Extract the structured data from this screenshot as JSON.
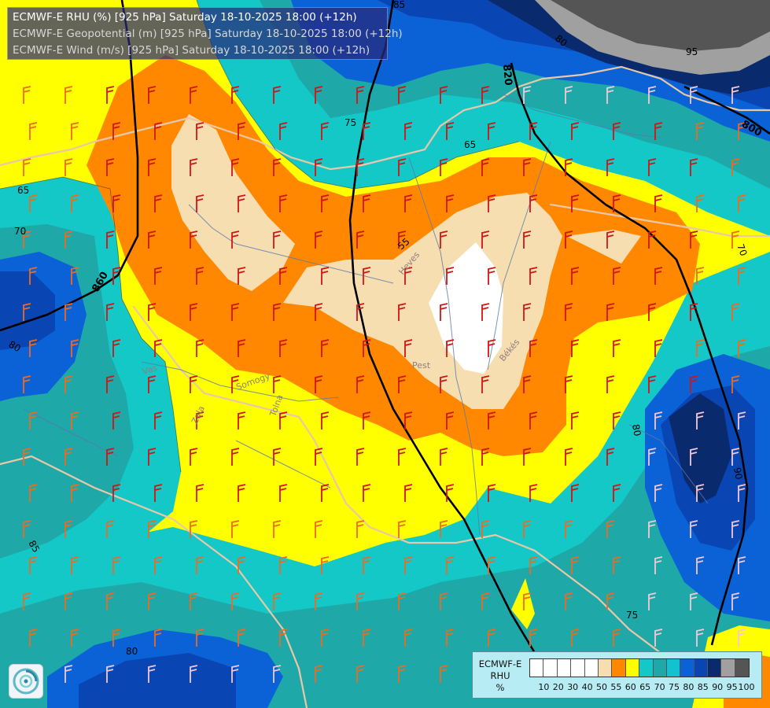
{
  "title": {
    "line1": "ECMWF-E RHU (%) [925 hPa] Saturday 18-10-2025 18:00 (+12h)",
    "line2": "ECMWF-E Geopotential (m) [925 hPa] Saturday 18-10-2025 18:00 (+12h)",
    "line3": "ECMWF-E Wind (m/s) [925 hPa] Saturday 18-10-2025 18:00 (+12h)"
  },
  "legend": {
    "title_line1": "ECMWF-E",
    "title_line2": "RHU",
    "title_line3": "%",
    "ticks": [
      "10",
      "20",
      "30",
      "40",
      "50",
      "55",
      "60",
      "65",
      "70",
      "75",
      "80",
      "85",
      "90",
      "95",
      "100"
    ],
    "colors": [
      "#ffffff",
      "#ffffff",
      "#ffffff",
      "#ffffff",
      "#ffffff",
      "#f7deb0",
      "#ff8800",
      "#ffff00",
      "#14c8c8",
      "#1ea8a8",
      "#12c3cf",
      "#0a62d6",
      "#0a45b4",
      "#0a2a6e",
      "#a0a0a0",
      "#555555"
    ]
  },
  "contour_labels": {
    "rhu": [
      "85",
      "80",
      "95",
      "75",
      "65",
      "65",
      "70",
      "55",
      "70",
      "80",
      "80",
      "90",
      "75",
      "80",
      "85"
    ],
    "geopotential": [
      "820",
      "800",
      "860"
    ]
  },
  "place_labels": [
    "Heves",
    "Pest",
    "Békés",
    "Vas",
    "Somogy",
    "Zala",
    "Tolna"
  ],
  "colors": {
    "rhu_50": "#f7deb0",
    "rhu_55": "#ff8800",
    "rhu_60": "#ffff00",
    "rhu_65": "#14c8c8",
    "rhu_70": "#1ea8a8",
    "rhu_80": "#0a62d6",
    "rhu_85": "#0a45b4",
    "rhu_90": "#0a2a6e",
    "rhu_95": "#a0a0a0",
    "wind_barb_strong": "#d21414",
    "wind_barb_medium": "#ef6a20",
    "wind_barb_light": "#f4c8d4",
    "border": "#e8c8a8",
    "river": "#5a7aa8"
  },
  "logo": "ecmwf-swirl-icon"
}
